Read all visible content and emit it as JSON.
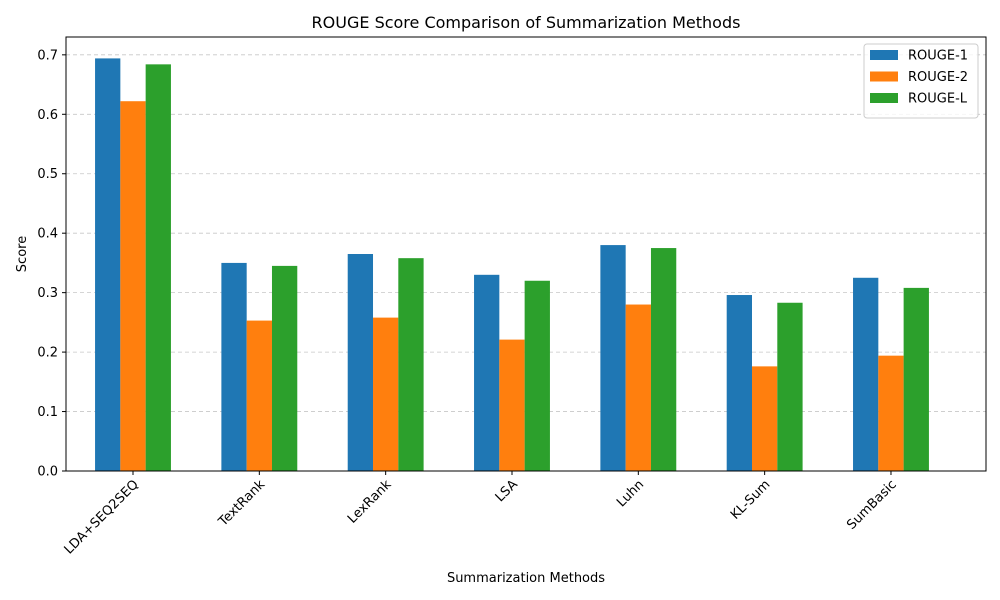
{
  "chart_data": {
    "type": "bar",
    "title": "ROUGE Score Comparison of Summarization Methods",
    "xlabel": "Summarization Methods",
    "ylabel": "Score",
    "ylim": [
      0,
      0.73
    ],
    "yticks": [
      "0.0",
      "0.1",
      "0.2",
      "0.3",
      "0.4",
      "0.5",
      "0.6",
      "0.7"
    ],
    "grid": true,
    "legend_position": "top-right",
    "categories": [
      "LDA+SEQ2SEQ",
      "TextRank",
      "LexRank",
      "LSA",
      "Luhn",
      "KL-Sum",
      "SumBasic"
    ],
    "series": [
      {
        "name": "ROUGE-1",
        "color": "#1f77b4",
        "values": [
          0.694,
          0.35,
          0.365,
          0.33,
          0.38,
          0.296,
          0.325
        ]
      },
      {
        "name": "ROUGE-2",
        "color": "#ff7f0e",
        "values": [
          0.622,
          0.253,
          0.258,
          0.221,
          0.28,
          0.176,
          0.194
        ]
      },
      {
        "name": "ROUGE-L",
        "color": "#2ca02c",
        "values": [
          0.684,
          0.345,
          0.358,
          0.32,
          0.375,
          0.283,
          0.308
        ]
      }
    ]
  }
}
